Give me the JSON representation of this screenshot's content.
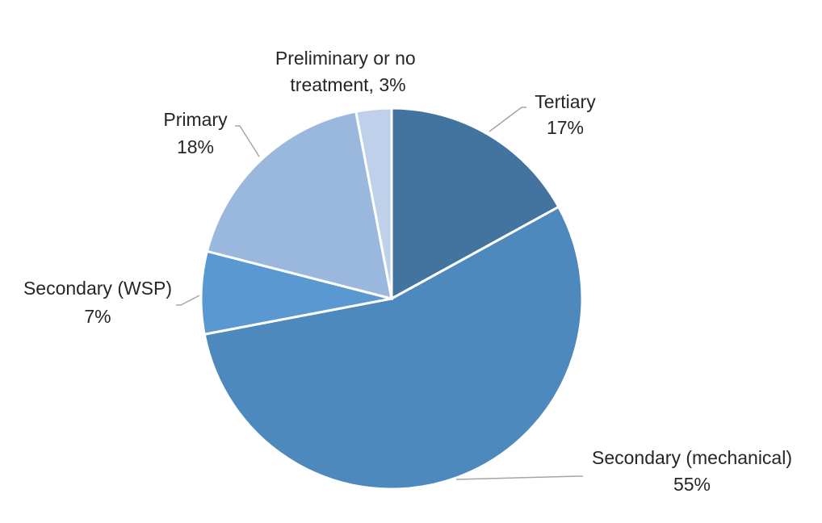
{
  "chart_data": {
    "type": "pie",
    "title": "",
    "start_angle_deg": 0,
    "direction": "clockwise",
    "slices": [
      {
        "name": "Tertiary",
        "value": 17,
        "label": "17%",
        "color": "#43749F"
      },
      {
        "name": "Secondary (mechanical)",
        "value": 55,
        "label": "55%",
        "color": "#4E89BD"
      },
      {
        "name": "Secondary (WSP)",
        "value": 7,
        "label": "7%",
        "color": "#5A98D2"
      },
      {
        "name": "Primary",
        "value": 18,
        "label": "18%",
        "color": "#9AB8DE"
      },
      {
        "name": "Preliminary or no treatment",
        "value": 3,
        "label": "3%",
        "color": "#BFD1EA"
      }
    ],
    "legend": "none"
  }
}
